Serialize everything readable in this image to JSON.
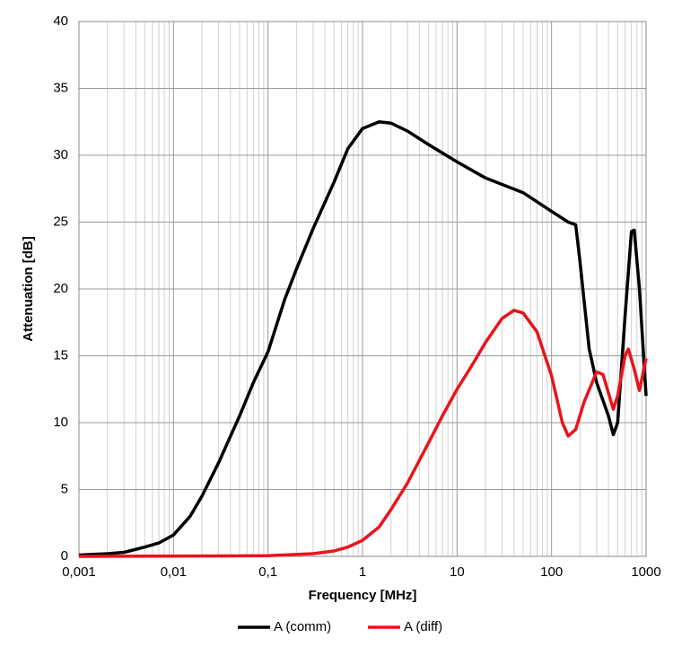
{
  "chart_data": {
    "type": "line",
    "x_label": "Frequency [MHz]",
    "y_label": "Attenuation [dB]",
    "log_x": true,
    "grid": true,
    "minor_grid": true,
    "legend": "bottom",
    "xlim": [
      0.001,
      1000
    ],
    "xticks": [
      {
        "value": 0.001,
        "label": "0,001"
      },
      {
        "value": 0.01,
        "label": "0,01"
      },
      {
        "value": 0.1,
        "label": "0,1"
      },
      1,
      10,
      100,
      1000
    ],
    "ylim": [
      0,
      40
    ],
    "yticks": [
      0,
      5,
      10,
      15,
      20,
      25,
      30,
      35,
      40
    ],
    "series": [
      {
        "name": "A (comm)",
        "color": "#000000",
        "x": [
          0.001,
          0.002,
          0.003,
          0.005,
          0.007,
          0.01,
          0.015,
          0.02,
          0.03,
          0.05,
          0.07,
          0.1,
          0.15,
          0.2,
          0.3,
          0.5,
          0.7,
          1,
          1.5,
          2,
          3,
          5,
          10,
          20,
          50,
          100,
          150,
          180,
          200,
          250,
          300,
          400,
          450,
          500,
          600,
          700,
          750,
          850,
          1000
        ],
        "values": [
          0.1,
          0.2,
          0.3,
          0.7,
          1.0,
          1.6,
          3,
          4.5,
          7,
          10.5,
          13,
          15.3,
          19.2,
          21.5,
          24.5,
          28,
          30.5,
          32,
          32.5,
          32.4,
          31.8,
          30.8,
          29.5,
          28.3,
          27.2,
          25.8,
          25,
          24.8,
          22,
          15.5,
          13,
          10.5,
          9.1,
          10,
          18,
          24.3,
          24.4,
          20,
          12
        ]
      },
      {
        "name": "A (diff)",
        "color": "#e8141c",
        "x": [
          0.001,
          0.1,
          0.3,
          0.5,
          0.7,
          1,
          1.5,
          2,
          3,
          5,
          7,
          10,
          15,
          20,
          30,
          40,
          50,
          70,
          100,
          130,
          150,
          180,
          220,
          300,
          350,
          450,
          500,
          600,
          650,
          750,
          850,
          1000
        ],
        "values": [
          0,
          0.05,
          0.2,
          0.4,
          0.7,
          1.2,
          2.2,
          3.5,
          5.5,
          8.5,
          10.5,
          12.5,
          14.5,
          16,
          17.8,
          18.4,
          18.2,
          16.8,
          13.5,
          10,
          9,
          9.5,
          11.5,
          13.8,
          13.6,
          11,
          12,
          15,
          15.5,
          14,
          12.4,
          14.8
        ]
      }
    ]
  }
}
